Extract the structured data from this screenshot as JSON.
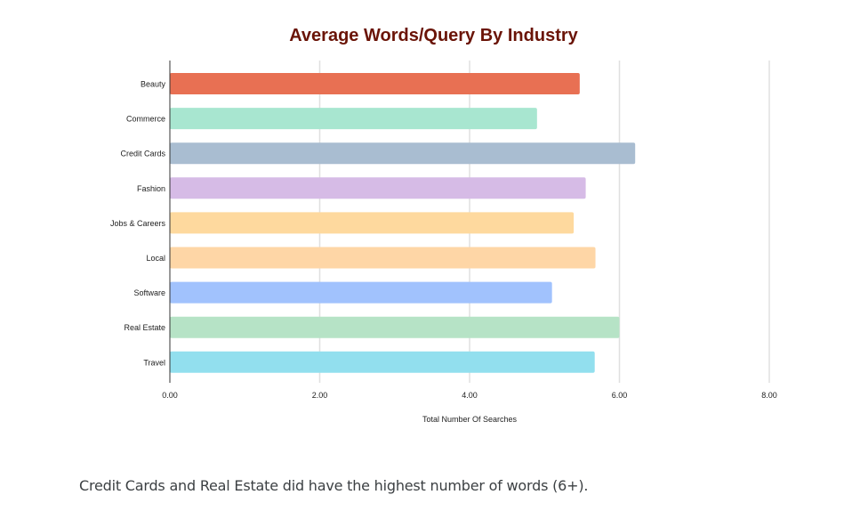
{
  "chart_data": {
    "type": "bar",
    "orientation": "horizontal",
    "title": "Average Words/Query By Industry",
    "xlabel": "Total Number Of Searches",
    "ylabel": "",
    "xlim": [
      0,
      8
    ],
    "xticks": [
      "0.00",
      "2.00",
      "4.00",
      "6.00",
      "8.00"
    ],
    "grid": true,
    "categories": [
      "Beauty",
      "Commerce",
      "Credit Cards",
      "Fashion",
      "Jobs & Careers",
      "Local",
      "Software",
      "Real Estate",
      "Travel"
    ],
    "values": [
      5.47,
      4.9,
      6.21,
      5.55,
      5.39,
      5.68,
      5.1,
      6.0,
      5.67
    ],
    "colors": [
      "#e87053",
      "#a8e6d0",
      "#a9bdd1",
      "#d6bbe6",
      "#fed99e",
      "#fed6a6",
      "#a1c2fd",
      "#b6e3c6",
      "#92dfee"
    ]
  },
  "caption": "Credit Cards and Real Estate did have the highest number of words (6+)."
}
